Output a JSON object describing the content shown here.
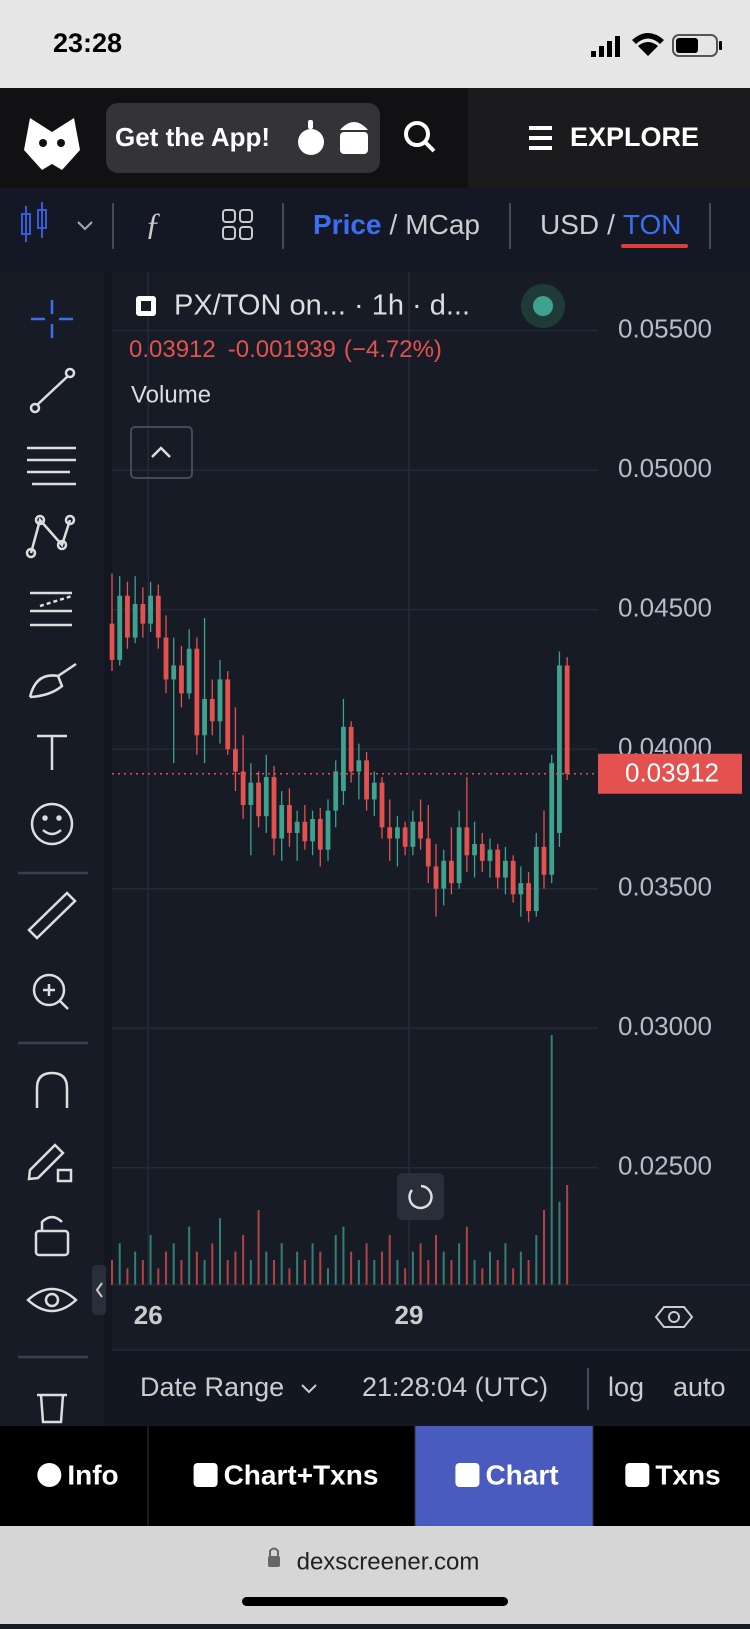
{
  "status_bar": {
    "time": "23:28"
  },
  "header": {
    "get_app": "Get the App!",
    "explore": "EXPLORE"
  },
  "toolbar": {
    "price": "Price",
    "separator1": "/",
    "mcap": "MCap",
    "usd": "USD",
    "separator2": "/",
    "ton": "TON"
  },
  "legend": {
    "symbol": "PX/TON on... · 1h · d...",
    "change": "-0.001939",
    "change_pct": "(−4.72%)",
    "volume": "Volume"
  },
  "chart_data": {
    "type": "candlestick",
    "candles": [
      [
        0.0445,
        0.0463,
        0.0428,
        0.0432
      ],
      [
        0.0432,
        0.0462,
        0.043,
        0.0455
      ],
      [
        0.0455,
        0.046,
        0.0436,
        0.044
      ],
      [
        0.044,
        0.0462,
        0.0438,
        0.0452
      ],
      [
        0.0452,
        0.0458,
        0.044,
        0.0445
      ],
      [
        0.0445,
        0.046,
        0.0442,
        0.0455
      ],
      [
        0.0455,
        0.0459,
        0.0436,
        0.044
      ],
      [
        0.044,
        0.0448,
        0.042,
        0.0425
      ],
      [
        0.0425,
        0.044,
        0.0395,
        0.043
      ],
      [
        0.043,
        0.0437,
        0.0415,
        0.042
      ],
      [
        0.042,
        0.0443,
        0.0418,
        0.0436
      ],
      [
        0.0436,
        0.044,
        0.0398,
        0.0405
      ],
      [
        0.0405,
        0.0447,
        0.0395,
        0.0418
      ],
      [
        0.0418,
        0.0425,
        0.0405,
        0.041
      ],
      [
        0.041,
        0.0432,
        0.0402,
        0.0425
      ],
      [
        0.0425,
        0.0428,
        0.0398,
        0.04
      ],
      [
        0.04,
        0.0415,
        0.0385,
        0.0392
      ],
      [
        0.0392,
        0.0405,
        0.0375,
        0.038
      ],
      [
        0.038,
        0.0395,
        0.0362,
        0.0388
      ],
      [
        0.0388,
        0.0392,
        0.0372,
        0.0376
      ],
      [
        0.0376,
        0.0398,
        0.037,
        0.039
      ],
      [
        0.039,
        0.0394,
        0.0362,
        0.0368
      ],
      [
        0.0368,
        0.0385,
        0.036,
        0.038
      ],
      [
        0.038,
        0.0386,
        0.0365,
        0.037
      ],
      [
        0.037,
        0.0378,
        0.036,
        0.0374
      ],
      [
        0.0374,
        0.038,
        0.0364,
        0.0367
      ],
      [
        0.0367,
        0.0378,
        0.0362,
        0.0375
      ],
      [
        0.0375,
        0.0379,
        0.0358,
        0.0364
      ],
      [
        0.0364,
        0.0382,
        0.036,
        0.0378
      ],
      [
        0.0378,
        0.0396,
        0.0372,
        0.0392
      ],
      [
        0.0385,
        0.0418,
        0.038,
        0.0408
      ],
      [
        0.0408,
        0.041,
        0.0388,
        0.0392
      ],
      [
        0.0392,
        0.0402,
        0.0382,
        0.0396
      ],
      [
        0.0396,
        0.0399,
        0.0378,
        0.0382
      ],
      [
        0.0382,
        0.0392,
        0.0376,
        0.0388
      ],
      [
        0.0388,
        0.039,
        0.0368,
        0.0372
      ],
      [
        0.0372,
        0.0382,
        0.036,
        0.0368
      ],
      [
        0.0368,
        0.0376,
        0.0358,
        0.0372
      ],
      [
        0.0372,
        0.0374,
        0.0362,
        0.0365
      ],
      [
        0.0365,
        0.0378,
        0.0362,
        0.0374
      ],
      [
        0.0374,
        0.0382,
        0.0364,
        0.0368
      ],
      [
        0.0368,
        0.038,
        0.0352,
        0.0358
      ],
      [
        0.0358,
        0.0366,
        0.034,
        0.035
      ],
      [
        0.035,
        0.0364,
        0.0344,
        0.036
      ],
      [
        0.036,
        0.0372,
        0.0348,
        0.0352
      ],
      [
        0.0352,
        0.0378,
        0.035,
        0.0372
      ],
      [
        0.0372,
        0.039,
        0.0356,
        0.0362
      ],
      [
        0.0362,
        0.0374,
        0.0354,
        0.0366
      ],
      [
        0.0366,
        0.037,
        0.0356,
        0.036
      ],
      [
        0.036,
        0.0368,
        0.0354,
        0.0364
      ],
      [
        0.0364,
        0.0366,
        0.035,
        0.0354
      ],
      [
        0.0354,
        0.0365,
        0.0348,
        0.036
      ],
      [
        0.036,
        0.0362,
        0.0345,
        0.0348
      ],
      [
        0.0348,
        0.0358,
        0.034,
        0.0352
      ],
      [
        0.0352,
        0.0356,
        0.0338,
        0.0342
      ],
      [
        0.0342,
        0.037,
        0.034,
        0.0365
      ],
      [
        0.0365,
        0.0378,
        0.035,
        0.0355
      ],
      [
        0.0355,
        0.0398,
        0.0352,
        0.0395
      ],
      [
        0.037,
        0.0435,
        0.0365,
        0.043
      ],
      [
        0.043,
        0.0433,
        0.0389,
        0.03912
      ]
    ],
    "volume": [
      3,
      5,
      2,
      4,
      3,
      6,
      2,
      4,
      5,
      3,
      7,
      4,
      3,
      5,
      8,
      3,
      4,
      6,
      3,
      9,
      4,
      3,
      5,
      2,
      4,
      3,
      5,
      4,
      2,
      6,
      7,
      4,
      3,
      5,
      3,
      4,
      6,
      3,
      2,
      4,
      5,
      3,
      6,
      4,
      3,
      5,
      7,
      3,
      2,
      4,
      3,
      5,
      2,
      4,
      3,
      6,
      9,
      30,
      10,
      12
    ],
    "xlim": [
      0,
      63
    ],
    "xticks": [
      {
        "value": 4.7,
        "label": "26"
      },
      {
        "value": 38.5,
        "label": "29"
      }
    ],
    "ylim": [
      0.0208,
      0.0571
    ],
    "yticks": [
      {
        "value": 0.055,
        "label": "0.05500"
      },
      {
        "value": 0.05,
        "label": "0.05000"
      },
      {
        "value": 0.045,
        "label": "0.04500"
      },
      {
        "value": 0.04,
        "label": "0.04000"
      },
      {
        "value": 0.035,
        "label": "0.03500"
      },
      {
        "value": 0.03,
        "label": "0.03000"
      },
      {
        "value": 0.025,
        "label": "0.02500"
      }
    ],
    "last_price": {
      "value": 0.03912,
      "label": "0.03912"
    },
    "up_color": "#3fa28f",
    "down_color": "#e4524f",
    "grid": true
  },
  "footer_bar": {
    "date_range": "Date Range",
    "time": "21:28:04 (UTC)",
    "log": "log",
    "auto": "auto"
  },
  "nav": {
    "items": [
      "Info",
      "Chart+Txns",
      "Chart",
      "Txns"
    ],
    "active": 2
  },
  "url": "dexscreener.com"
}
